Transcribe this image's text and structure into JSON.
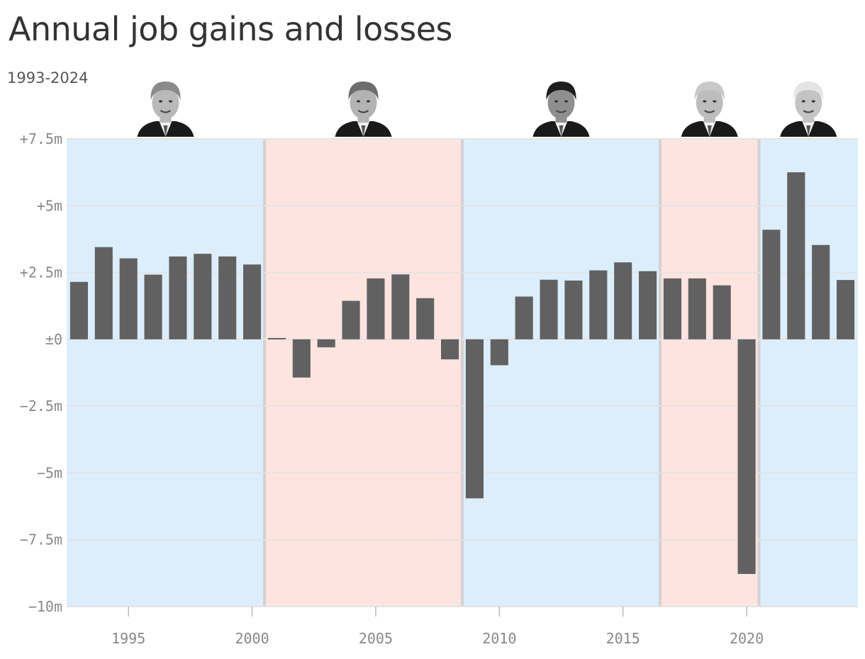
{
  "title": "Annual job gains and losses",
  "subtitle": "1993-2024",
  "colors": {
    "democrat": "#dceefc",
    "republican": "#fde4df",
    "bar": "#616161",
    "grid": "#e3e3e3",
    "boundary": "#d2d2d2"
  },
  "presidents": [
    {
      "icon": "clinton-portrait-icon",
      "start": 1992.5,
      "end": 2000.5,
      "party": "democrat"
    },
    {
      "icon": "bush-portrait-icon",
      "start": 2000.5,
      "end": 2008.5,
      "party": "republican"
    },
    {
      "icon": "obama-portrait-icon",
      "start": 2008.5,
      "end": 2016.5,
      "party": "democrat"
    },
    {
      "icon": "trump-portrait-icon",
      "start": 2016.5,
      "end": 2020.5,
      "party": "republican"
    },
    {
      "icon": "biden-portrait-icon",
      "start": 2020.5,
      "end": 2024.5,
      "party": "democrat"
    }
  ],
  "chart_data": {
    "type": "bar",
    "x": [
      1993,
      1994,
      1995,
      1996,
      1997,
      1998,
      1999,
      2000,
      2001,
      2002,
      2003,
      2004,
      2005,
      2006,
      2007,
      2008,
      2009,
      2010,
      2011,
      2012,
      2013,
      2014,
      2015,
      2016,
      2017,
      2018,
      2019,
      2020,
      2021,
      2022,
      2023,
      2024
    ],
    "values": [
      2.15,
      3.45,
      3.03,
      2.42,
      3.1,
      3.2,
      3.1,
      2.8,
      0.05,
      -1.43,
      -0.3,
      1.44,
      2.28,
      2.43,
      1.54,
      -0.75,
      -5.95,
      -0.97,
      1.6,
      2.23,
      2.2,
      2.58,
      2.88,
      2.55,
      2.28,
      2.28,
      2.02,
      -8.78,
      4.1,
      6.25,
      3.53,
      2.22
    ],
    "ylim": [
      -10,
      7.5
    ],
    "xlim": [
      1992.5,
      2024.5
    ],
    "yticks": [
      {
        "value": 7.5,
        "label": "+7.5m"
      },
      {
        "value": 5,
        "label": "+5m"
      },
      {
        "value": 2.5,
        "label": "+2.5m"
      },
      {
        "value": 0,
        "label": "±0"
      },
      {
        "value": -2.5,
        "label": "−2.5m"
      },
      {
        "value": -5,
        "label": "−5m"
      },
      {
        "value": -7.5,
        "label": "−7.5m"
      },
      {
        "value": -10,
        "label": "−10m"
      }
    ],
    "xticks": [
      {
        "value": 1995,
        "label": "1995"
      },
      {
        "value": 2000,
        "label": "2000"
      },
      {
        "value": 2005,
        "label": "2005"
      },
      {
        "value": 2010,
        "label": "2010"
      },
      {
        "value": 2015,
        "label": "2015"
      },
      {
        "value": 2020,
        "label": "2020"
      }
    ],
    "grid": true
  }
}
